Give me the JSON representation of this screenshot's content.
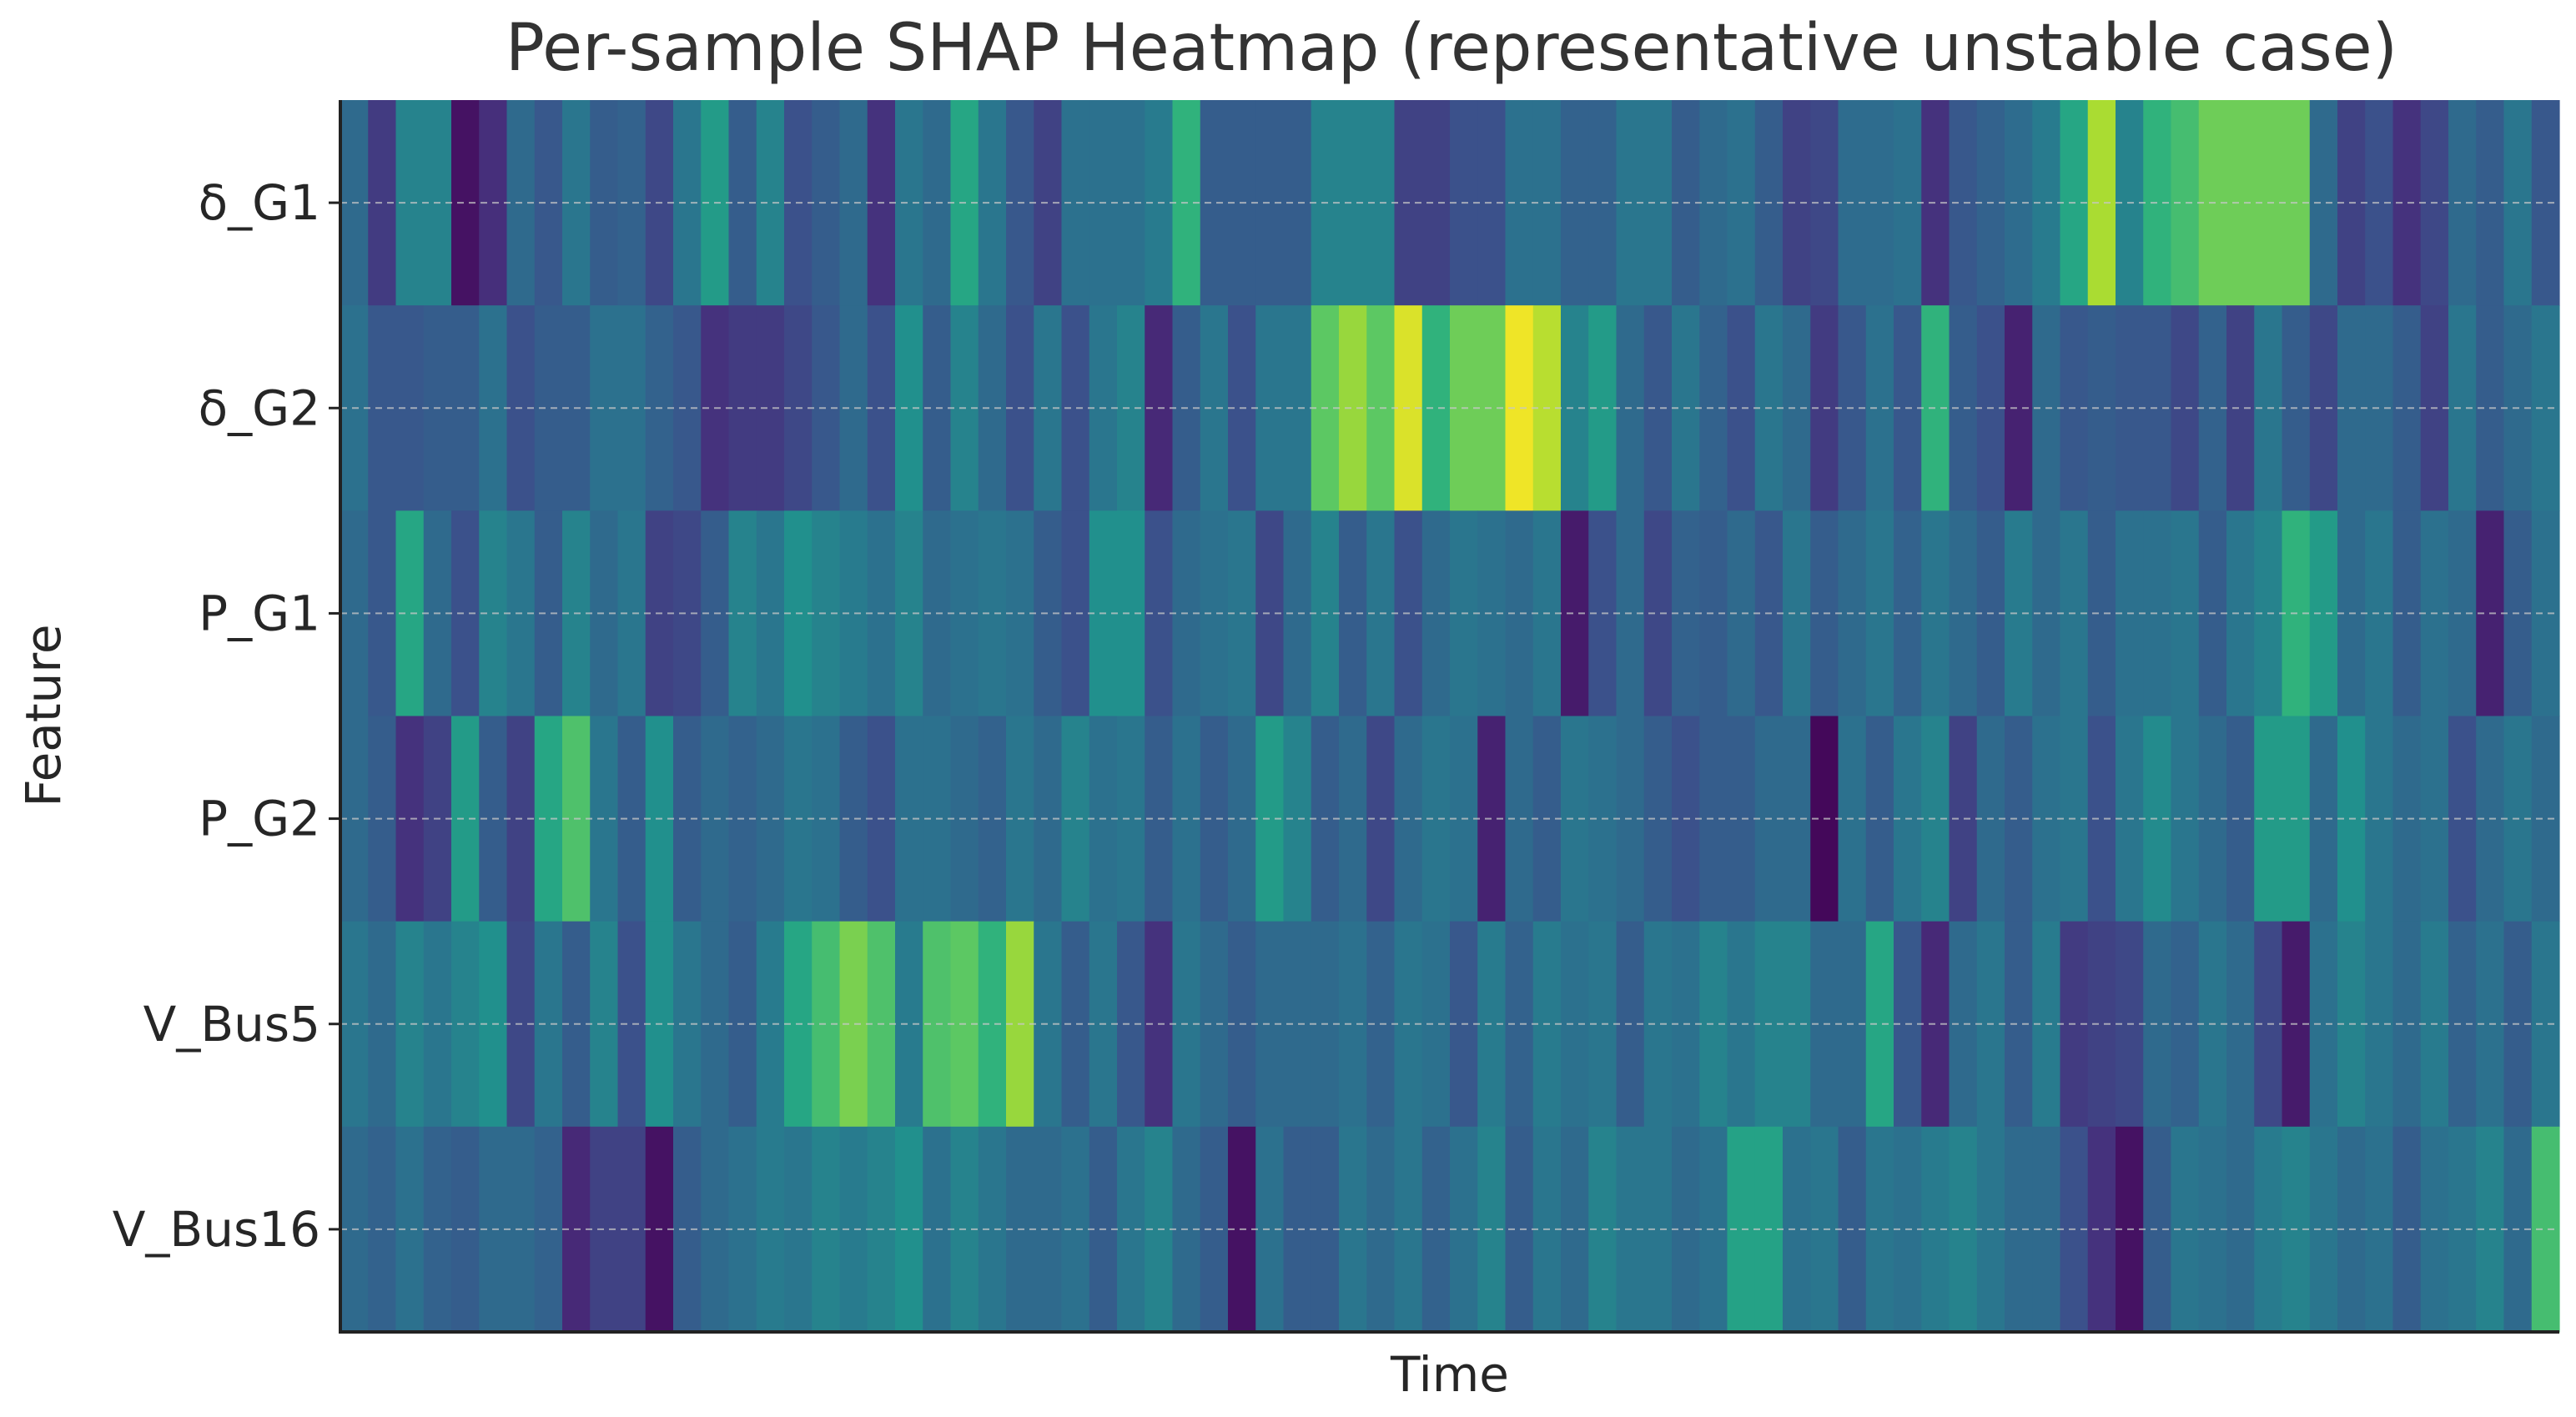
{
  "chart_data": {
    "type": "heatmap",
    "title": "Per-sample SHAP Heatmap (representative unstable case)",
    "xlabel": "Time",
    "ylabel": "Feature",
    "features": [
      "δ_G1",
      "δ_G2",
      "P_G1",
      "P_G2",
      "V_Bus5",
      "V_Bus16"
    ],
    "n_samples": 80,
    "colormap": "viridis",
    "value_range": [
      0,
      1
    ],
    "grid": "horizontal dashed lines at feature centers",
    "values": [
      [
        0.35,
        0.18,
        0.45,
        0.45,
        0.05,
        0.14,
        0.35,
        0.28,
        0.4,
        0.3,
        0.32,
        0.22,
        0.4,
        0.55,
        0.3,
        0.45,
        0.25,
        0.3,
        0.35,
        0.15,
        0.4,
        0.35,
        0.6,
        0.4,
        0.28,
        0.2,
        0.38,
        0.38,
        0.38,
        0.42,
        0.65,
        0.3,
        0.3,
        0.3,
        0.3,
        0.45,
        0.45,
        0.45,
        0.2,
        0.2,
        0.25,
        0.25,
        0.38,
        0.38,
        0.32,
        0.32,
        0.4,
        0.4,
        0.3,
        0.35,
        0.38,
        0.3,
        0.2,
        0.22,
        0.36,
        0.36,
        0.38,
        0.15,
        0.28,
        0.32,
        0.36,
        0.42,
        0.6,
        0.88,
        0.45,
        0.65,
        0.7,
        0.78,
        0.78,
        0.78,
        0.78,
        0.35,
        0.2,
        0.25,
        0.15,
        0.22,
        0.35,
        0.3,
        0.4,
        0.28
      ],
      [
        0.38,
        0.28,
        0.28,
        0.3,
        0.3,
        0.38,
        0.25,
        0.3,
        0.3,
        0.38,
        0.38,
        0.32,
        0.28,
        0.15,
        0.18,
        0.18,
        0.22,
        0.28,
        0.35,
        0.25,
        0.5,
        0.3,
        0.45,
        0.35,
        0.25,
        0.4,
        0.25,
        0.4,
        0.45,
        0.12,
        0.3,
        0.4,
        0.25,
        0.4,
        0.4,
        0.75,
        0.85,
        0.75,
        0.95,
        0.65,
        0.78,
        0.78,
        0.98,
        0.9,
        0.45,
        0.55,
        0.35,
        0.28,
        0.4,
        0.32,
        0.25,
        0.4,
        0.35,
        0.18,
        0.28,
        0.38,
        0.28,
        0.65,
        0.3,
        0.25,
        0.1,
        0.35,
        0.28,
        0.3,
        0.28,
        0.28,
        0.22,
        0.32,
        0.2,
        0.4,
        0.3,
        0.22,
        0.35,
        0.35,
        0.3,
        0.2,
        0.4,
        0.3,
        0.35,
        0.4
      ],
      [
        0.35,
        0.28,
        0.6,
        0.35,
        0.25,
        0.45,
        0.4,
        0.3,
        0.45,
        0.35,
        0.4,
        0.2,
        0.22,
        0.3,
        0.45,
        0.4,
        0.5,
        0.45,
        0.42,
        0.38,
        0.45,
        0.35,
        0.38,
        0.4,
        0.38,
        0.3,
        0.25,
        0.5,
        0.5,
        0.25,
        0.35,
        0.38,
        0.4,
        0.22,
        0.35,
        0.45,
        0.3,
        0.4,
        0.25,
        0.35,
        0.4,
        0.38,
        0.35,
        0.4,
        0.08,
        0.25,
        0.35,
        0.22,
        0.32,
        0.3,
        0.35,
        0.28,
        0.4,
        0.3,
        0.35,
        0.4,
        0.32,
        0.4,
        0.35,
        0.3,
        0.42,
        0.35,
        0.4,
        0.3,
        0.38,
        0.38,
        0.4,
        0.3,
        0.4,
        0.45,
        0.65,
        0.55,
        0.35,
        0.4,
        0.3,
        0.38,
        0.35,
        0.1,
        0.3,
        0.38
      ],
      [
        0.35,
        0.3,
        0.15,
        0.2,
        0.55,
        0.3,
        0.2,
        0.6,
        0.72,
        0.4,
        0.3,
        0.5,
        0.3,
        0.35,
        0.32,
        0.35,
        0.4,
        0.38,
        0.3,
        0.25,
        0.38,
        0.38,
        0.35,
        0.32,
        0.4,
        0.35,
        0.45,
        0.38,
        0.4,
        0.3,
        0.38,
        0.3,
        0.35,
        0.55,
        0.45,
        0.3,
        0.35,
        0.22,
        0.35,
        0.4,
        0.38,
        0.1,
        0.35,
        0.3,
        0.4,
        0.38,
        0.35,
        0.3,
        0.25,
        0.3,
        0.3,
        0.35,
        0.35,
        0.02,
        0.38,
        0.3,
        0.4,
        0.45,
        0.2,
        0.35,
        0.3,
        0.38,
        0.4,
        0.25,
        0.4,
        0.48,
        0.4,
        0.35,
        0.3,
        0.55,
        0.55,
        0.35,
        0.5,
        0.4,
        0.35,
        0.38,
        0.25,
        0.35,
        0.4,
        0.35
      ],
      [
        0.4,
        0.35,
        0.45,
        0.4,
        0.45,
        0.5,
        0.22,
        0.4,
        0.3,
        0.45,
        0.25,
        0.5,
        0.4,
        0.35,
        0.3,
        0.42,
        0.6,
        0.7,
        0.8,
        0.72,
        0.42,
        0.72,
        0.75,
        0.65,
        0.85,
        0.4,
        0.3,
        0.4,
        0.28,
        0.15,
        0.4,
        0.35,
        0.3,
        0.35,
        0.35,
        0.35,
        0.38,
        0.32,
        0.4,
        0.38,
        0.28,
        0.42,
        0.32,
        0.42,
        0.38,
        0.4,
        0.3,
        0.4,
        0.38,
        0.45,
        0.4,
        0.45,
        0.45,
        0.35,
        0.35,
        0.6,
        0.28,
        0.12,
        0.35,
        0.4,
        0.3,
        0.42,
        0.18,
        0.2,
        0.22,
        0.35,
        0.32,
        0.4,
        0.35,
        0.22,
        0.08,
        0.38,
        0.45,
        0.4,
        0.35,
        0.42,
        0.32,
        0.38,
        0.3,
        0.4
      ],
      [
        0.35,
        0.32,
        0.38,
        0.32,
        0.3,
        0.35,
        0.35,
        0.32,
        0.12,
        0.2,
        0.2,
        0.05,
        0.3,
        0.35,
        0.38,
        0.42,
        0.4,
        0.45,
        0.42,
        0.45,
        0.5,
        0.38,
        0.45,
        0.4,
        0.35,
        0.35,
        0.38,
        0.3,
        0.4,
        0.45,
        0.35,
        0.3,
        0.05,
        0.38,
        0.3,
        0.3,
        0.4,
        0.35,
        0.4,
        0.32,
        0.38,
        0.45,
        0.3,
        0.4,
        0.35,
        0.45,
        0.4,
        0.4,
        0.35,
        0.38,
        0.58,
        0.58,
        0.38,
        0.4,
        0.3,
        0.4,
        0.38,
        0.42,
        0.45,
        0.4,
        0.35,
        0.35,
        0.25,
        0.15,
        0.05,
        0.3,
        0.4,
        0.38,
        0.35,
        0.42,
        0.45,
        0.4,
        0.35,
        0.38,
        0.3,
        0.38,
        0.4,
        0.45,
        0.35,
        0.7
      ]
    ]
  }
}
